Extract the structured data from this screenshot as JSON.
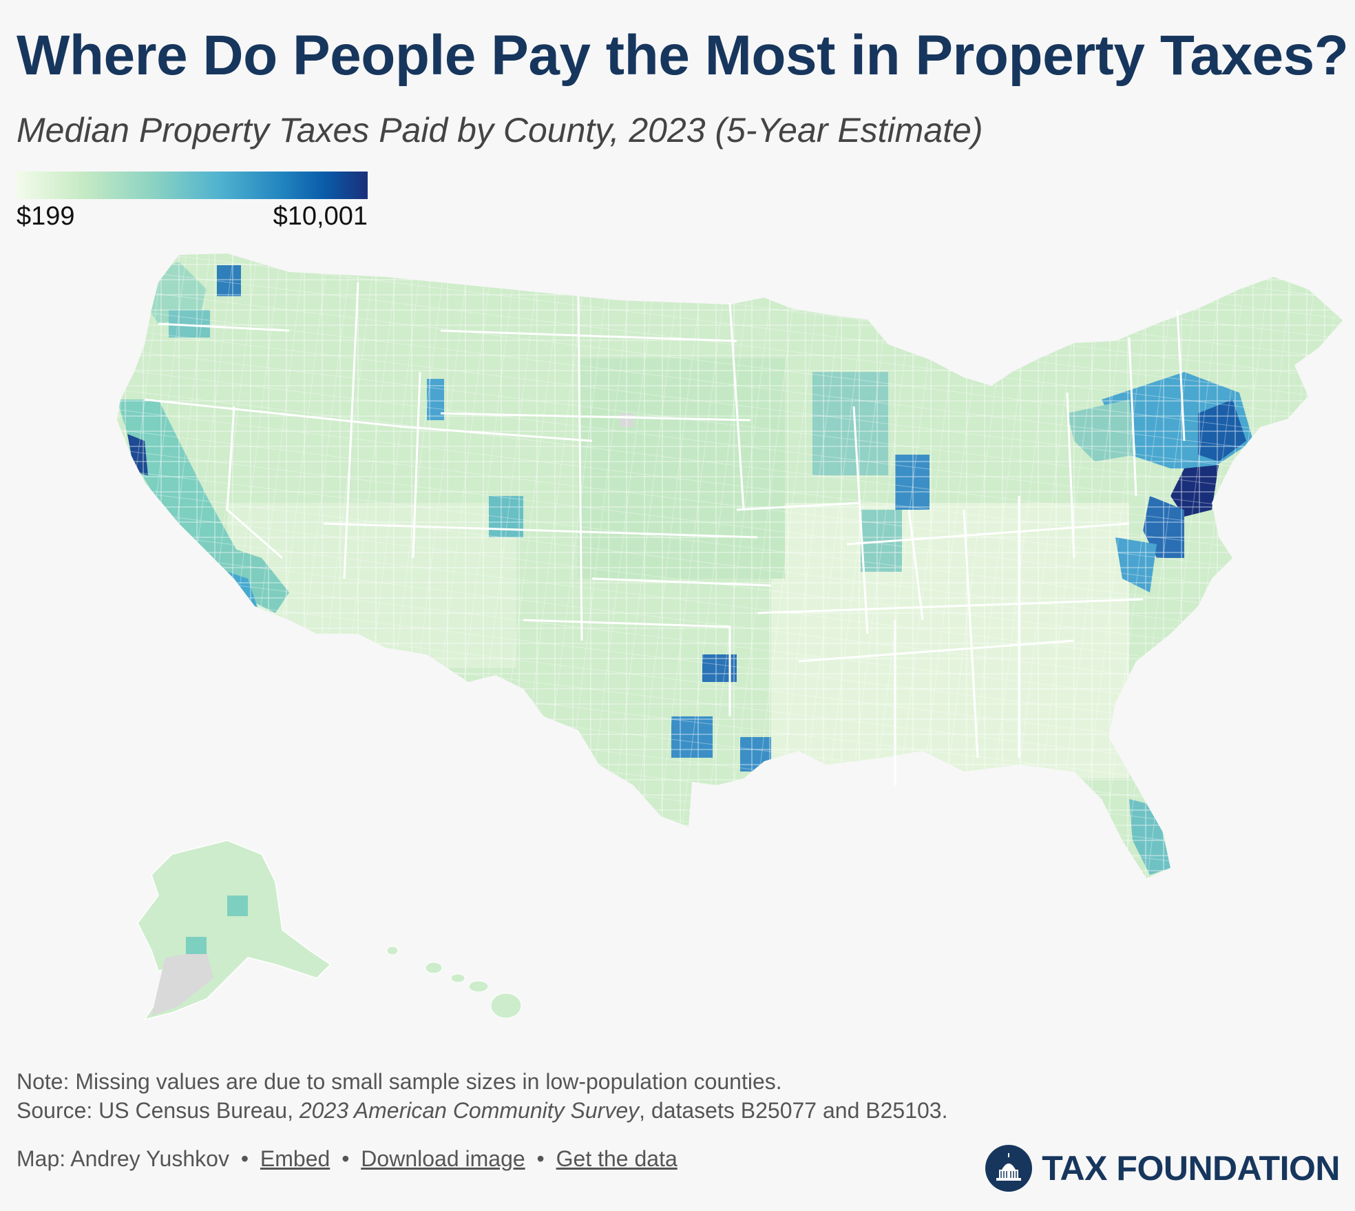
{
  "title": "Where Do People Pay the Most in Property Taxes?",
  "subtitle": "Median Property Taxes Paid by County, 2023 (5-Year Estimate)",
  "legend": {
    "min_label": "$199",
    "max_label": "$10,001",
    "min_value": 199,
    "max_value": 10001,
    "scale_colors": [
      "#f3fbeb",
      "#c8ebc5",
      "#8ed4c2",
      "#4fb2cf",
      "#2386c0",
      "#0a5ba8",
      "#1a2f7a"
    ]
  },
  "map": {
    "missing_color": "#d9d9d9",
    "border_color": "#ffffff"
  },
  "note": "Note: Missing values are due to small sample sizes in low-population counties.",
  "source": {
    "prefix": "Source: US Census Bureau, ",
    "dataset": "2023 American Community Survey",
    "suffix": ", datasets B25077 and B25103."
  },
  "credits": {
    "author": "Map: Andrey Yushkov",
    "sep": "•",
    "embed": "Embed",
    "download": "Download image",
    "data": "Get the data"
  },
  "brand": {
    "name": "TAX FOUNDATION",
    "color": "#17365d"
  }
}
